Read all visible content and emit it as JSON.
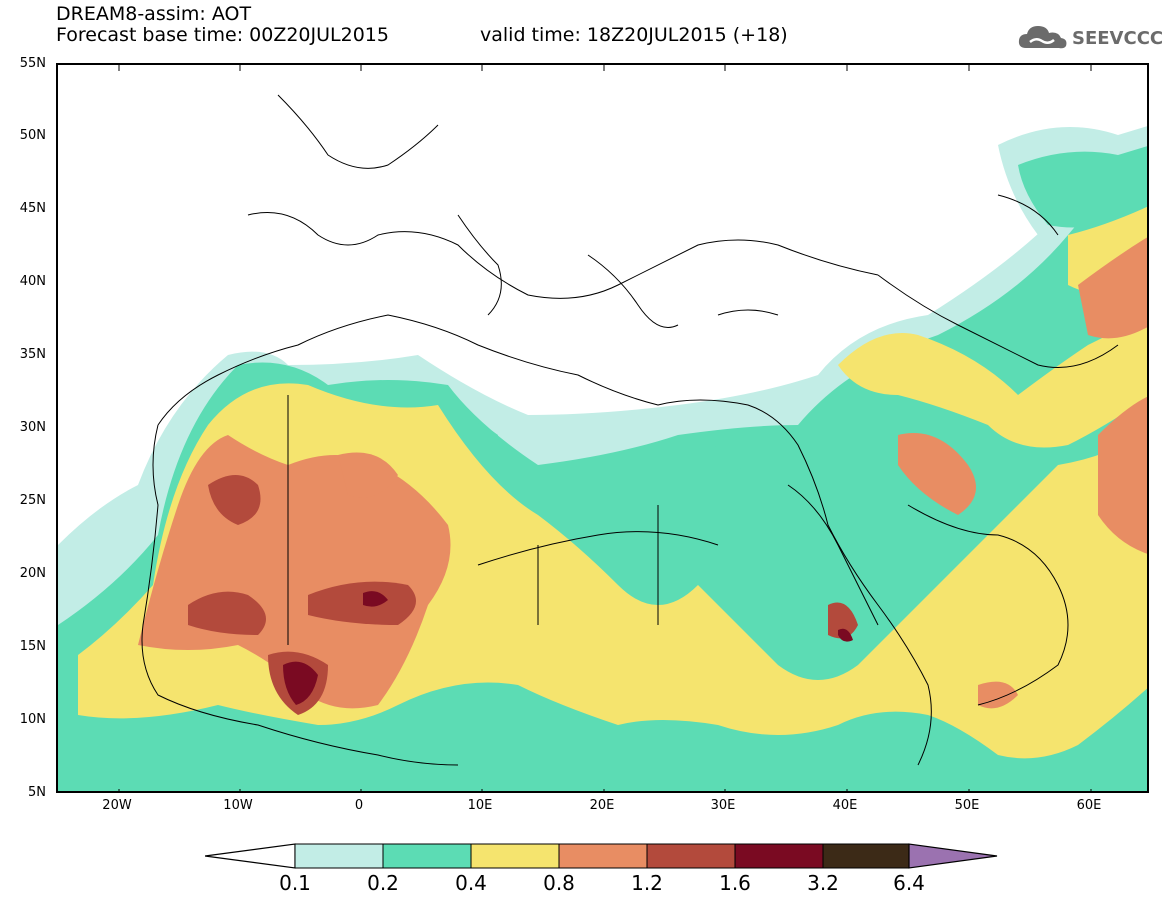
{
  "header": {
    "title_line1": "DREAM8-assim: AOT",
    "title_line2": "Forecast base time: 00Z20JUL2015",
    "valid_time": "valid time: 18Z20JUL2015 (+18)"
  },
  "logo": {
    "text": "SEEVCCC",
    "icon": "cloud-icon",
    "color": "#6b6b6b"
  },
  "map": {
    "variable": "AOT",
    "lat_labels": [
      "55N",
      "50N",
      "45N",
      "40N",
      "35N",
      "30N",
      "25N",
      "20N",
      "15N",
      "10N",
      "5N"
    ],
    "lon_labels": [
      "20W",
      "10W",
      "0",
      "10E",
      "20E",
      "30E",
      "40E",
      "50E",
      "60E"
    ],
    "lat_range": [
      5,
      55
    ],
    "lon_range": [
      -25,
      65
    ]
  },
  "legend": {
    "labels": [
      "0.1",
      "0.2",
      "0.4",
      "0.8",
      "1.2",
      "1.6",
      "3.2",
      "6.4"
    ],
    "colors": [
      "#ffffff",
      "#c2ede6",
      "#5cdcb4",
      "#f5e46e",
      "#e88d63",
      "#b34a3c",
      "#7a0a22",
      "#3c2a17",
      "#9b72b0"
    ]
  }
}
